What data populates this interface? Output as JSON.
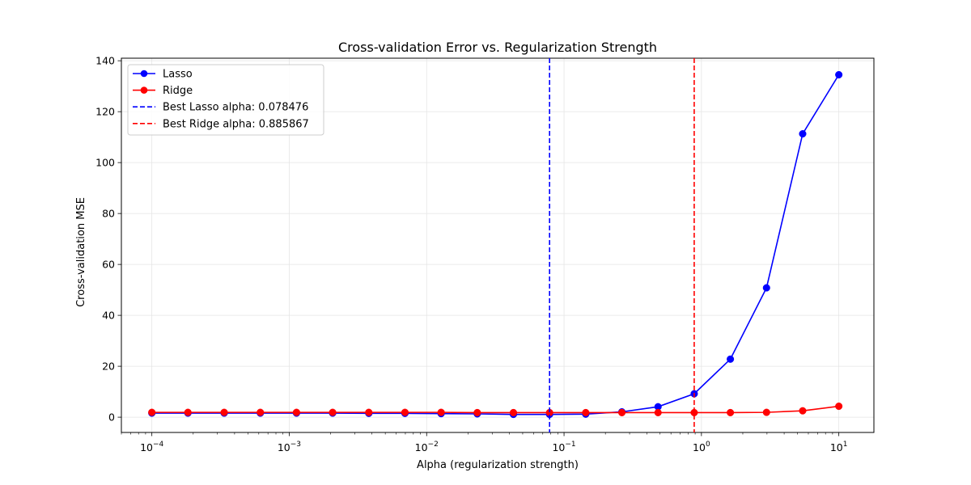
{
  "chart_data": {
    "type": "line",
    "title": "Cross-validation Error vs. Regularization Strength",
    "xlabel": "Alpha (regularization strength)",
    "ylabel": "Cross-validation MSE",
    "xscale": "log",
    "xlim": [
      6e-05,
      18
    ],
    "ylim": [
      -6,
      141
    ],
    "grid": true,
    "legend_position": "top-left",
    "x": [
      0.0001,
      0.000183,
      0.000336,
      0.000616,
      0.001129,
      0.002069,
      0.003793,
      0.006952,
      0.012743,
      0.023357,
      0.042813,
      0.078476,
      0.143845,
      0.263665,
      0.483293,
      0.885867,
      1.623777,
      2.976351,
      5.455595,
      10.0
    ],
    "series": [
      {
        "name": "Lasso",
        "color": "#0000ff",
        "values": [
          1.6,
          1.6,
          1.6,
          1.6,
          1.6,
          1.6,
          1.5,
          1.5,
          1.4,
          1.3,
          1.1,
          1.1,
          1.2,
          2.1,
          4.1,
          9.2,
          22.8,
          50.8,
          111.3,
          134.5
        ]
      },
      {
        "name": "Ridge",
        "color": "#ff0000",
        "values": [
          1.9,
          1.9,
          1.9,
          1.9,
          1.9,
          1.9,
          1.9,
          1.9,
          1.9,
          1.8,
          1.8,
          1.8,
          1.8,
          1.8,
          1.8,
          1.8,
          1.8,
          1.9,
          2.5,
          4.3
        ]
      }
    ],
    "vlines": [
      {
        "name": "Best Lasso alpha: 0.078476",
        "x": 0.078476,
        "color": "#0000ff",
        "style": "dashed"
      },
      {
        "name": "Best Ridge alpha: 0.885867",
        "x": 0.885867,
        "color": "#ff0000",
        "style": "dashed"
      }
    ],
    "x_ticks": [
      {
        "value": 0.0001,
        "base": "10",
        "exp": "−4"
      },
      {
        "value": 0.001,
        "base": "10",
        "exp": "−3"
      },
      {
        "value": 0.01,
        "base": "10",
        "exp": "−2"
      },
      {
        "value": 0.1,
        "base": "10",
        "exp": "−1"
      },
      {
        "value": 1,
        "base": "10",
        "exp": "0"
      },
      {
        "value": 10,
        "base": "10",
        "exp": "1"
      }
    ],
    "y_ticks": [
      0,
      20,
      40,
      60,
      80,
      100,
      120,
      140
    ]
  }
}
